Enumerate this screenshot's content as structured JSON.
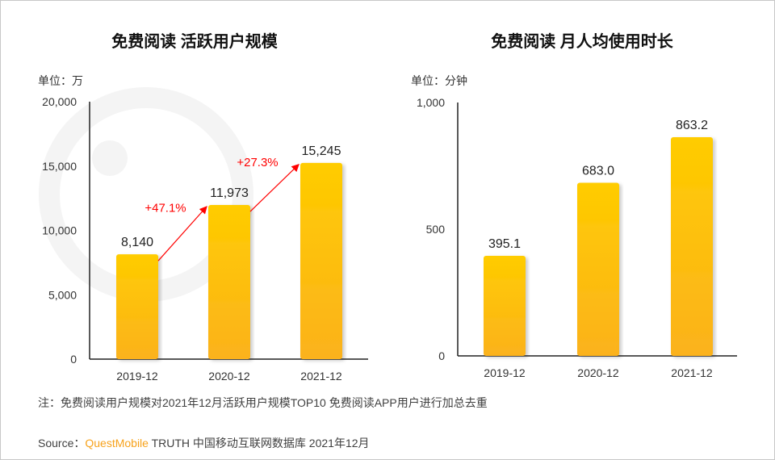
{
  "chart_data": [
    {
      "type": "bar",
      "title": "免费阅读 活跃用户规模",
      "unit_label": "单位：万",
      "categories": [
        "2019-12",
        "2020-12",
        "2021-12"
      ],
      "values": [
        8140,
        11973,
        15245
      ],
      "value_labels": [
        "8,140",
        "11,973",
        "15,245"
      ],
      "ylim": [
        0,
        20000
      ],
      "yticks": [
        0,
        5000,
        10000,
        15000,
        20000
      ],
      "ytick_labels": [
        "0",
        "5,000",
        "10,000",
        "15,000",
        "20,000"
      ],
      "growth_annotations": [
        "+47.1%",
        "+27.3%"
      ],
      "grid": false
    },
    {
      "type": "bar",
      "title": "免费阅读 月人均使用时长",
      "unit_label": "单位：分钟",
      "categories": [
        "2019-12",
        "2020-12",
        "2021-12"
      ],
      "values": [
        395.1,
        683.0,
        863.2
      ],
      "value_labels": [
        "395.1",
        "683.0",
        "863.2"
      ],
      "ylim": [
        0,
        1000
      ],
      "yticks": [
        0,
        500,
        1000
      ],
      "ytick_labels": [
        "0",
        "500",
        "1,000"
      ],
      "grid": false
    }
  ],
  "colors": {
    "bar_top": "#ffcc00",
    "bar_bottom": "#fbb21c",
    "annotation": "#ff0000",
    "brand": "#f7a21b"
  },
  "watermark": "QUEST MOBILE",
  "footer": {
    "note": "注：免费阅读用户规模对2021年12月活跃用户规模TOP10 免费阅读APP用户进行加总去重",
    "source_prefix": "Source：",
    "source_brand": "QuestMobile",
    "source_rest": " TRUTH 中国移动互联网数据库 2021年12月"
  }
}
